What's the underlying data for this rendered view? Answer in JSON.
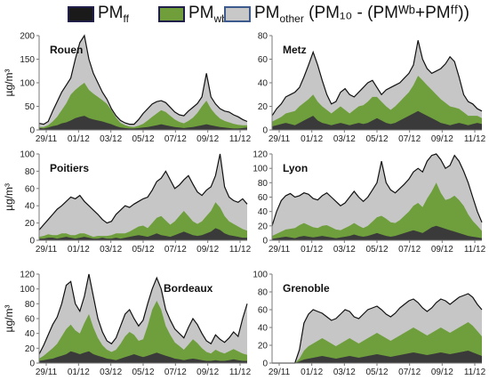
{
  "legend": {
    "items": [
      {
        "key": "ff",
        "main": "PM",
        "sub": "ff",
        "tail": "",
        "color": "#1a1a1a"
      },
      {
        "key": "wb",
        "main": "PM",
        "sub": "wb",
        "tail": "",
        "color": "#6f9e3a"
      },
      {
        "key": "other",
        "main": "PM",
        "sub": "other",
        "tail": " (PM₁₀ - (PMᵂᵇ+PMᶠᶠ))",
        "color": "#c8c8c8"
      }
    ]
  },
  "colors": {
    "ff": "#3a3a3a",
    "wb": "#6e9f3c",
    "other": "#c6c6c6",
    "total_line": "#111111",
    "axis": "#7a7a7a"
  },
  "ylabel": "µg/m³",
  "xtick_labels": [
    "29/11",
    "01/12",
    "03/12",
    "05/12",
    "07/12",
    "09/12",
    "11/12"
  ],
  "chart_data": [
    {
      "type": "area",
      "title": "Rouen",
      "ylim": [
        0,
        200
      ],
      "yticks": [
        0,
        50,
        100,
        150,
        200
      ],
      "peak_days": [
        1.6,
        2.2,
        9.5
      ],
      "peak_values": [
        180,
        200,
        120
      ],
      "series": [
        {
          "name": "PM_ff",
          "values": [
            4,
            3,
            5,
            8,
            10,
            14,
            16,
            20,
            25,
            28,
            30,
            25,
            22,
            20,
            18,
            15,
            12,
            8,
            5,
            4,
            3,
            3,
            4,
            5,
            6,
            8,
            10,
            12,
            10,
            8,
            6,
            5,
            4,
            5,
            6,
            8,
            10,
            12,
            10,
            8,
            6,
            5,
            4,
            3,
            3,
            4,
            5
          ]
        },
        {
          "name": "PM_wb",
          "values": [
            2,
            3,
            5,
            10,
            18,
            28,
            40,
            55,
            60,
            65,
            70,
            60,
            55,
            50,
            45,
            40,
            30,
            18,
            10,
            6,
            4,
            3,
            5,
            8,
            14,
            20,
            25,
            30,
            28,
            22,
            16,
            12,
            10,
            14,
            20,
            28,
            40,
            50,
            35,
            25,
            18,
            14,
            12,
            10,
            8,
            6,
            5
          ]
        },
        {
          "name": "PM10 total",
          "values": [
            14,
            12,
            18,
            40,
            60,
            80,
            95,
            110,
            150,
            185,
            200,
            150,
            120,
            100,
            80,
            65,
            45,
            30,
            20,
            15,
            12,
            12,
            22,
            35,
            45,
            55,
            60,
            62,
            58,
            48,
            38,
            32,
            30,
            40,
            48,
            56,
            70,
            120,
            70,
            55,
            45,
            40,
            38,
            32,
            28,
            22,
            18
          ]
        }
      ]
    },
    {
      "type": "area",
      "title": "Metz",
      "ylim": [
        0,
        80
      ],
      "yticks": [
        0,
        20,
        40,
        60,
        80
      ],
      "series": [
        {
          "name": "PM_ff",
          "values": [
            3,
            4,
            5,
            6,
            5,
            4,
            6,
            8,
            10,
            12,
            8,
            6,
            5,
            4,
            5,
            6,
            5,
            4,
            5,
            6,
            5,
            6,
            8,
            10,
            8,
            6,
            5,
            6,
            8,
            10,
            12,
            14,
            16,
            14,
            12,
            10,
            8,
            6,
            5,
            4,
            5,
            6,
            5,
            4,
            5,
            6,
            5
          ]
        },
        {
          "name": "PM_wb",
          "values": [
            4,
            5,
            6,
            8,
            10,
            12,
            14,
            15,
            16,
            18,
            16,
            14,
            12,
            10,
            12,
            14,
            12,
            10,
            12,
            14,
            16,
            18,
            20,
            18,
            16,
            14,
            12,
            14,
            16,
            18,
            20,
            24,
            30,
            28,
            26,
            24,
            22,
            20,
            18,
            16,
            14,
            12,
            10,
            8,
            7,
            6,
            5
          ]
        },
        {
          "name": "PM10 total",
          "values": [
            12,
            18,
            22,
            28,
            30,
            32,
            36,
            45,
            55,
            66,
            55,
            42,
            30,
            22,
            24,
            32,
            35,
            30,
            28,
            32,
            36,
            40,
            42,
            36,
            30,
            34,
            36,
            38,
            40,
            44,
            48,
            55,
            76,
            60,
            52,
            48,
            50,
            52,
            56,
            62,
            58,
            45,
            30,
            24,
            22,
            18,
            16
          ]
        }
      ]
    },
    {
      "type": "area",
      "title": "Poitiers",
      "ylim": [
        0,
        100
      ],
      "yticks": [
        0,
        20,
        40,
        60,
        80,
        100
      ],
      "series": [
        {
          "name": "PM_ff",
          "values": [
            2,
            2,
            3,
            3,
            2,
            3,
            4,
            3,
            2,
            3,
            4,
            3,
            2,
            2,
            3,
            2,
            2,
            3,
            2,
            3,
            4,
            5,
            6,
            5,
            4,
            6,
            8,
            6,
            5,
            4,
            6,
            8,
            10,
            8,
            6,
            5,
            6,
            8,
            10,
            14,
            12,
            8,
            6,
            5,
            4,
            3,
            3
          ]
        },
        {
          "name": "PM_wb",
          "values": [
            2,
            3,
            4,
            3,
            4,
            5,
            4,
            3,
            4,
            5,
            4,
            3,
            2,
            3,
            2,
            3,
            4,
            5,
            6,
            5,
            6,
            8,
            10,
            12,
            10,
            14,
            18,
            22,
            18,
            14,
            16,
            20,
            24,
            20,
            16,
            14,
            16,
            20,
            24,
            30,
            26,
            20,
            16,
            14,
            12,
            10,
            8
          ]
        },
        {
          "name": "PM10 total",
          "values": [
            12,
            18,
            24,
            30,
            36,
            40,
            45,
            50,
            48,
            52,
            45,
            40,
            35,
            30,
            24,
            20,
            22,
            30,
            35,
            40,
            38,
            42,
            45,
            48,
            50,
            58,
            68,
            72,
            80,
            70,
            60,
            64,
            70,
            75,
            65,
            56,
            52,
            58,
            62,
            75,
            100,
            62,
            50,
            46,
            44,
            48,
            42
          ]
        }
      ]
    },
    {
      "type": "area",
      "title": "Lyon",
      "ylim": [
        0,
        120
      ],
      "yticks": [
        0,
        20,
        40,
        60,
        80,
        100,
        120
      ],
      "series": [
        {
          "name": "PM_ff",
          "values": [
            2,
            3,
            4,
            5,
            4,
            3,
            5,
            6,
            5,
            4,
            5,
            6,
            5,
            4,
            3,
            4,
            5,
            6,
            8,
            6,
            5,
            6,
            8,
            10,
            8,
            6,
            5,
            6,
            8,
            10,
            12,
            14,
            12,
            10,
            14,
            18,
            20,
            18,
            16,
            14,
            12,
            10,
            8,
            6,
            5,
            4,
            3
          ]
        },
        {
          "name": "PM_wb",
          "values": [
            4,
            6,
            8,
            10,
            12,
            14,
            16,
            18,
            16,
            14,
            12,
            14,
            16,
            14,
            12,
            10,
            12,
            14,
            16,
            14,
            12,
            14,
            18,
            22,
            26,
            24,
            20,
            18,
            20,
            24,
            28,
            34,
            40,
            36,
            44,
            50,
            60,
            48,
            40,
            44,
            50,
            46,
            40,
            30,
            22,
            16,
            10
          ]
        },
        {
          "name": "PM10 total",
          "values": [
            20,
            40,
            55,
            62,
            65,
            60,
            62,
            66,
            64,
            58,
            56,
            62,
            66,
            60,
            54,
            48,
            52,
            60,
            68,
            60,
            54,
            60,
            70,
            80,
            110,
            80,
            70,
            66,
            72,
            78,
            85,
            95,
            100,
            95,
            110,
            118,
            120,
            112,
            100,
            104,
            118,
            110,
            96,
            80,
            60,
            40,
            25
          ]
        }
      ]
    },
    {
      "type": "area",
      "title": "Bordeaux",
      "ylim": [
        0,
        120
      ],
      "yticks": [
        0,
        20,
        40,
        60,
        80,
        100,
        120
      ],
      "series": [
        {
          "name": "PM_ff",
          "values": [
            3,
            4,
            5,
            6,
            8,
            10,
            12,
            16,
            14,
            12,
            14,
            16,
            12,
            10,
            8,
            6,
            5,
            4,
            6,
            8,
            10,
            12,
            10,
            8,
            10,
            12,
            14,
            12,
            10,
            8,
            6,
            5,
            4,
            5,
            6,
            5,
            4,
            3,
            3,
            4,
            3,
            3,
            4,
            5,
            4,
            3,
            3
          ]
        },
        {
          "name": "PM_wb",
          "values": [
            3,
            6,
            10,
            14,
            18,
            26,
            34,
            36,
            30,
            28,
            40,
            50,
            36,
            24,
            16,
            12,
            10,
            14,
            20,
            28,
            32,
            26,
            20,
            24,
            40,
            60,
            70,
            60,
            40,
            30,
            22,
            18,
            14,
            20,
            26,
            22,
            16,
            12,
            10,
            14,
            12,
            10,
            12,
            14,
            12,
            10,
            8
          ]
        },
        {
          "name": "PM10 total",
          "values": [
            12,
            24,
            38,
            52,
            62,
            80,
            105,
            110,
            80,
            70,
            90,
            120,
            90,
            60,
            42,
            30,
            26,
            34,
            50,
            66,
            72,
            60,
            50,
            58,
            80,
            100,
            115,
            100,
            72,
            58,
            46,
            40,
            34,
            48,
            60,
            52,
            40,
            30,
            26,
            38,
            32,
            28,
            34,
            42,
            36,
            60,
            80
          ]
        }
      ]
    },
    {
      "type": "area",
      "title": "Grenoble",
      "ylim": [
        0,
        100
      ],
      "yticks": [
        0,
        20,
        40,
        60,
        80,
        100
      ],
      "series": [
        {
          "name": "PM_ff",
          "values": [
            0,
            0,
            0,
            0,
            0,
            0,
            2,
            4,
            5,
            6,
            7,
            8,
            7,
            6,
            5,
            6,
            7,
            8,
            7,
            6,
            7,
            8,
            9,
            10,
            9,
            8,
            7,
            8,
            9,
            10,
            11,
            12,
            11,
            10,
            9,
            10,
            11,
            12,
            11,
            10,
            11,
            12,
            13,
            14,
            12,
            10,
            8
          ]
        },
        {
          "name": "PM_wb",
          "values": [
            0,
            0,
            0,
            0,
            0,
            0,
            3,
            10,
            14,
            16,
            18,
            20,
            18,
            16,
            14,
            16,
            18,
            20,
            18,
            16,
            18,
            20,
            22,
            24,
            22,
            20,
            18,
            20,
            22,
            24,
            26,
            28,
            26,
            24,
            22,
            24,
            26,
            28,
            26,
            24,
            26,
            28,
            30,
            32,
            30,
            26,
            22
          ]
        },
        {
          "name": "PM10 total",
          "values": [
            0,
            0,
            0,
            0,
            0,
            0,
            15,
            45,
            55,
            60,
            58,
            56,
            52,
            48,
            50,
            55,
            60,
            58,
            52,
            50,
            55,
            60,
            62,
            64,
            60,
            55,
            52,
            56,
            62,
            66,
            70,
            72,
            68,
            62,
            58,
            62,
            68,
            72,
            70,
            66,
            70,
            74,
            76,
            78,
            74,
            66,
            60
          ]
        }
      ]
    }
  ]
}
